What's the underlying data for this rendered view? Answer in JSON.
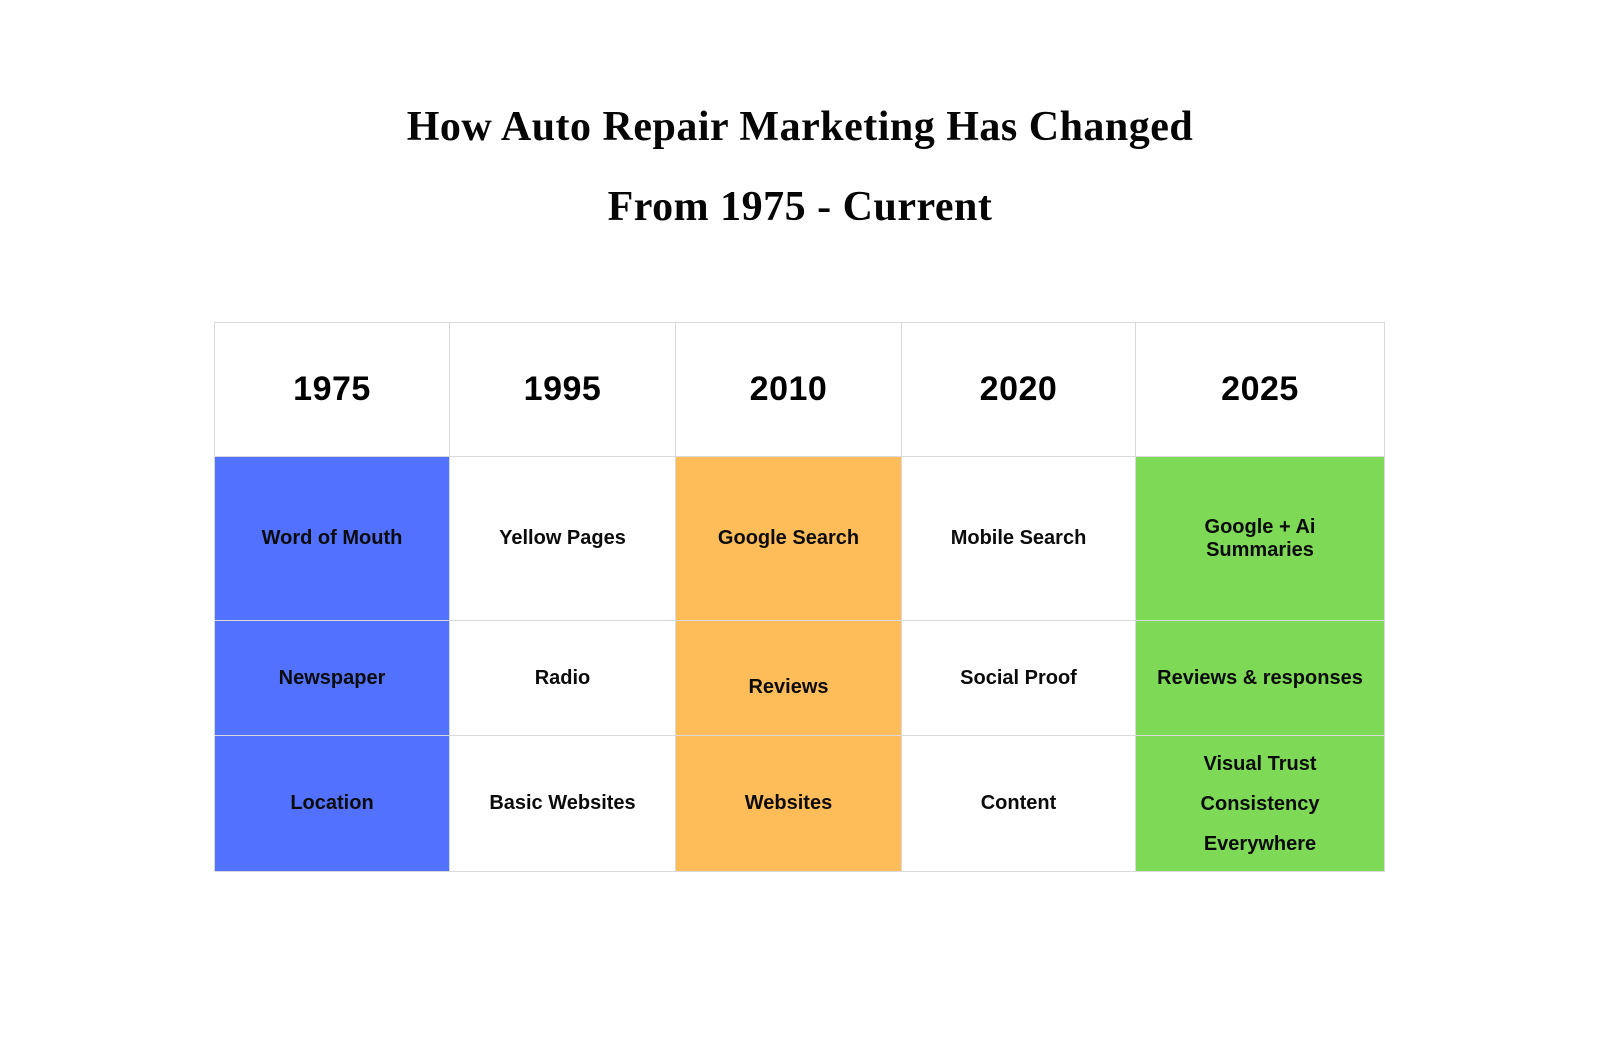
{
  "title": {
    "line1": "How Auto Repair Marketing Has Changed",
    "line2": "From 1975 - Current"
  },
  "table": {
    "columns": [
      {
        "year": "1975",
        "color": "#5271ff",
        "cells": [
          "Word of Mouth",
          "Newspaper",
          "Location"
        ]
      },
      {
        "year": "1995",
        "color": "#ffffff",
        "cells": [
          "Yellow Pages",
          "Radio",
          "Basic Websites"
        ]
      },
      {
        "year": "2010",
        "color": "#ffbd59",
        "cells": [
          "Google Search",
          "Reviews",
          "Websites"
        ]
      },
      {
        "year": "2020",
        "color": "#ffffff",
        "cells": [
          "Mobile Search",
          "Social Proof",
          "Content"
        ]
      },
      {
        "year": "2025",
        "color": "#7ed957",
        "cells": [
          "Google + Ai Summaries",
          "Reviews & responses",
          {
            "line1": "Visual Trust",
            "line2": "Consistency Everywhere"
          }
        ]
      }
    ]
  },
  "colors": {
    "era_1975_blue": "#5271ff",
    "era_2010_orange": "#ffbd59",
    "era_2025_green": "#7ed957",
    "grid_border": "#d9d9d9",
    "text": "#0d0d0d",
    "background": "#ffffff"
  }
}
